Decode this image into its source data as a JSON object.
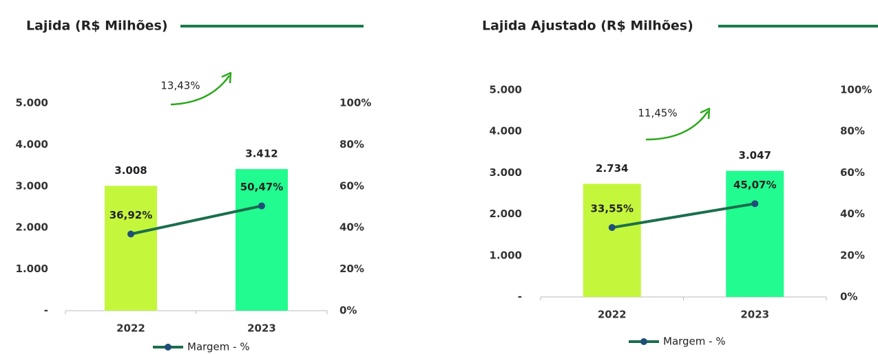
{
  "chart_data": [
    {
      "type": "bar",
      "title": "Lajida (R$ Milhões)",
      "annotation": "13,43%",
      "categories": [
        "2022",
        "2023"
      ],
      "series": [
        {
          "values": [
            3008,
            3412
          ],
          "value_labels": [
            "3.008",
            "3.412"
          ],
          "colors": [
            "#c4f73c",
            "#22fb8f"
          ]
        },
        {
          "name": "Margem - %",
          "type": "line",
          "axis": "y2",
          "color": "#1b6e4c",
          "marker_color": "#1f4e79",
          "values": [
            36.92,
            50.47
          ],
          "value_labels": [
            "36,92%",
            "50,47%"
          ]
        }
      ],
      "ylim": [
        0,
        5000
      ],
      "yticks": [
        {
          "value": 0,
          "label": "-"
        },
        {
          "value": 1000,
          "label": "1.000"
        },
        {
          "value": 2000,
          "label": "2.000"
        },
        {
          "value": 3000,
          "label": "3.000"
        },
        {
          "value": 4000,
          "label": "4.000"
        },
        {
          "value": 5000,
          "label": "5.000"
        }
      ],
      "y2lim": [
        0,
        100
      ],
      "y2ticks": [
        {
          "value": 0,
          "label": "0%"
        },
        {
          "value": 20,
          "label": "20%"
        },
        {
          "value": 40,
          "label": "40%"
        },
        {
          "value": 60,
          "label": "60%"
        },
        {
          "value": 80,
          "label": "80%"
        },
        {
          "value": 100,
          "label": "100%"
        }
      ]
    },
    {
      "type": "bar",
      "title": "Lajida Ajustado (R$ Milhões)",
      "annotation": "11,45%",
      "categories": [
        "2022",
        "2023"
      ],
      "series": [
        {
          "values": [
            2734,
            3047
          ],
          "value_labels": [
            "2.734",
            "3.047"
          ],
          "colors": [
            "#c4f73c",
            "#22fb8f"
          ]
        },
        {
          "name": "Margem - %",
          "type": "line",
          "axis": "y2",
          "color": "#1b6e4c",
          "marker_color": "#1f4e79",
          "values": [
            33.55,
            45.07
          ],
          "value_labels": [
            "33,55%",
            "45,07%"
          ]
        }
      ],
      "ylim": [
        0,
        5000
      ],
      "yticks": [
        {
          "value": 0,
          "label": "-"
        },
        {
          "value": 1000,
          "label": "1.000"
        },
        {
          "value": 2000,
          "label": "2.000"
        },
        {
          "value": 3000,
          "label": "3.000"
        },
        {
          "value": 4000,
          "label": "4.000"
        },
        {
          "value": 5000,
          "label": "5.000"
        }
      ],
      "y2lim": [
        0,
        100
      ],
      "y2ticks": [
        {
          "value": 0,
          "label": "0%"
        },
        {
          "value": 20,
          "label": "20%"
        },
        {
          "value": 40,
          "label": "40%"
        },
        {
          "value": 60,
          "label": "60%"
        },
        {
          "value": 80,
          "label": "80%"
        },
        {
          "value": 100,
          "label": "100%"
        }
      ]
    }
  ]
}
